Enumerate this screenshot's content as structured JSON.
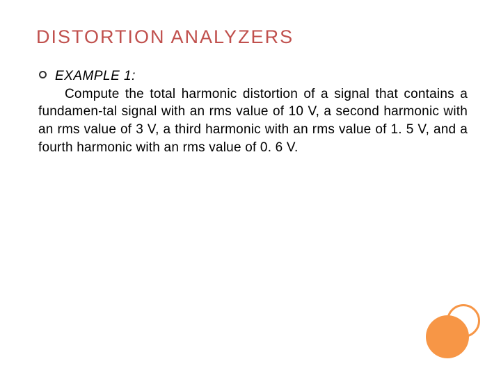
{
  "slide": {
    "title": "DISTORTION  ANALYZERS",
    "title_color": "#c0504d",
    "title_fontsize": 27,
    "bullet_border_color": "#333333",
    "example_label": "EXAMPLE 1:",
    "body_text": "Compute the total harmonic distortion of a signal that contains a fundamen-tal signal with an rms value of 10 V, a second harmonic with an rms value of 3 V, a third harmonic with an rms value of 1. 5 V, and a fourth harmonic with an rms value of 0. 6 V.",
    "body_fontsize": 19,
    "body_color": "#000000",
    "background_color": "#ffffff",
    "decor": {
      "fill_color": "#f79646",
      "ring_color": "#f79646"
    }
  }
}
